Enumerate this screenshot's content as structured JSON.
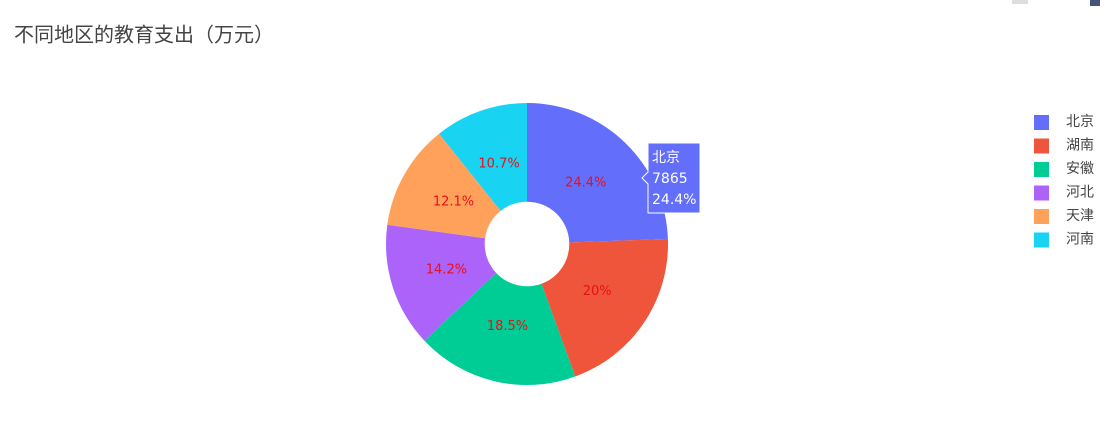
{
  "chart_data": {
    "type": "pie",
    "title": "不同地区的教育支出（万元）",
    "categories": [
      "北京",
      "湖南",
      "安徽",
      "河北",
      "天津",
      "河南"
    ],
    "values": [
      24.4,
      20,
      18.5,
      14.2,
      12.1,
      10.7
    ],
    "value_labels": [
      "24.4%",
      "20%",
      "18.5%",
      "14.2%",
      "12.1%",
      "10.7%"
    ],
    "colors": [
      "#636efa",
      "#ef553b",
      "#00cc96",
      "#ab63fa",
      "#ffa15a",
      "#19d3f3"
    ],
    "label_color": "#e8101a",
    "hole": 0.3,
    "legend": "right",
    "tooltip": {
      "index": 0,
      "value": 7865
    }
  }
}
